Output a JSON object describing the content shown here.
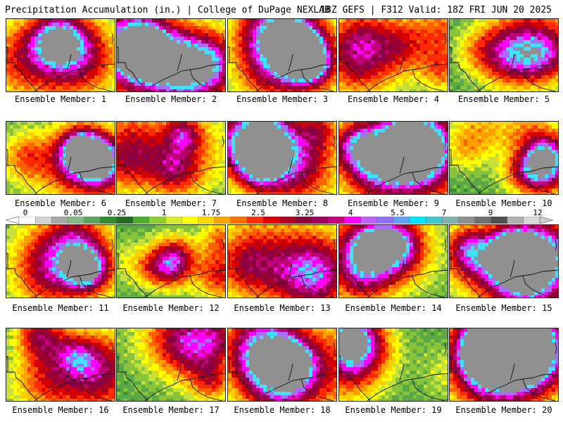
{
  "header": {
    "title": "Precipitation Accumulation (in.) | College of DuPage NEXLAB",
    "run": "18Z GEFS | F312 Valid: 18Z FRI JUN 20 2025"
  },
  "members": [
    {
      "label": "Ensemble Member: 1"
    },
    {
      "label": "Ensemble Member: 2"
    },
    {
      "label": "Ensemble Member: 3"
    },
    {
      "label": "Ensemble Member: 4"
    },
    {
      "label": "Ensemble Member: 5"
    },
    {
      "label": "Ensemble Member: 6"
    },
    {
      "label": "Ensemble Member: 7"
    },
    {
      "label": "Ensemble Member: 8"
    },
    {
      "label": "Ensemble Member: 9"
    },
    {
      "label": "Ensemble Member: 10"
    },
    {
      "label": "Ensemble Member: 11"
    },
    {
      "label": "Ensemble Member: 12"
    },
    {
      "label": "Ensemble Member: 13"
    },
    {
      "label": "Ensemble Member: 14"
    },
    {
      "label": "Ensemble Member: 15"
    },
    {
      "label": "Ensemble Member: 16"
    },
    {
      "label": "Ensemble Member: 17"
    },
    {
      "label": "Ensemble Member: 18"
    },
    {
      "label": "Ensemble Member: 19"
    },
    {
      "label": "Ensemble Member: 20"
    }
  ],
  "colorbar": {
    "ticks": [
      "0",
      "0.05",
      "0.25",
      "1",
      "1.75",
      "2.5",
      "3.25",
      "4",
      "5.5",
      "7",
      "9",
      "12"
    ],
    "colors": [
      "#ffffff",
      "#d2d2d2",
      "#a8a8a8",
      "#86b886",
      "#5aa55a",
      "#2e8b2e",
      "#1e6e1e",
      "#4caf2a",
      "#8ccf30",
      "#d8ee2a",
      "#ffff00",
      "#ffd700",
      "#ffa500",
      "#ff7000",
      "#ff3000",
      "#e00000",
      "#b00020",
      "#8b0030",
      "#a0005a",
      "#c8007a",
      "#ff00ff",
      "#c060ff",
      "#9070ff",
      "#60a0ff",
      "#00e5ff",
      "#40c8c8",
      "#80b0b0",
      "#909090",
      "#707070",
      "#505050",
      "#b0b0b0",
      "#d8d8d8"
    ]
  }
}
